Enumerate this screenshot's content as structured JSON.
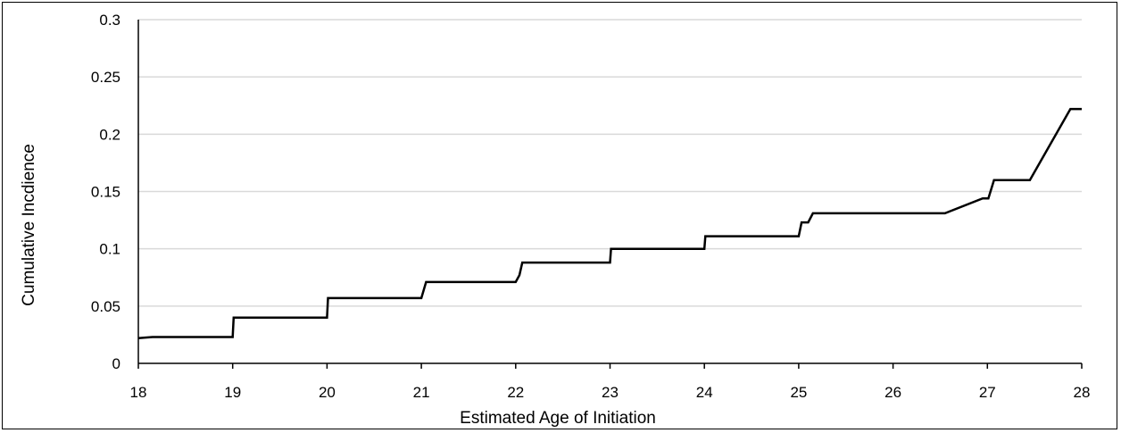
{
  "chart_data": {
    "type": "line",
    "title": "",
    "xlabel": "Estimated Age of Initiation",
    "ylabel": "Cumulative Incdience",
    "xlim": [
      18,
      28
    ],
    "ylim": [
      0,
      0.3
    ],
    "x_ticks": [
      18,
      19,
      20,
      21,
      22,
      23,
      24,
      25,
      26,
      27,
      28
    ],
    "y_ticks": [
      0,
      0.05,
      0.1,
      0.15,
      0.2,
      0.25,
      0.3
    ],
    "y_tick_labels": [
      "0",
      "0.05",
      "0.1",
      "0.15",
      "0.2",
      "0.25",
      "0.3"
    ],
    "grid": "horizontal",
    "legend": "none",
    "line_color": "#000000",
    "grid_color": "#d9d9d9",
    "series": [
      {
        "x": [
          18,
          18.15,
          19,
          19.01,
          20,
          20.01,
          21,
          21.05,
          22,
          22.04,
          22.07,
          23,
          23.01,
          24,
          24.01,
          25,
          25.03,
          25.1,
          25.15,
          26.55,
          26.95,
          27.01,
          27.07,
          27.45,
          27.88,
          28
        ],
        "y": [
          0.022,
          0.023,
          0.023,
          0.04,
          0.04,
          0.057,
          0.057,
          0.071,
          0.071,
          0.077,
          0.088,
          0.088,
          0.1,
          0.1,
          0.111,
          0.111,
          0.123,
          0.123,
          0.131,
          0.131,
          0.144,
          0.144,
          0.16,
          0.16,
          0.222,
          0.222
        ]
      }
    ]
  }
}
